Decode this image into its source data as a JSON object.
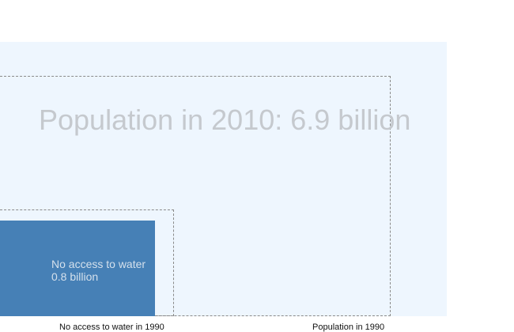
{
  "chart_data": {
    "type": "area",
    "series": [
      {
        "name": "Population in 2010",
        "value_billion": 6.9,
        "label": "Population in 2010: 6.9 billion"
      },
      {
        "name": "Population in 1990",
        "label": "Population in 1990"
      },
      {
        "name": "No access to water in 1990",
        "label": "No access to water in 1990"
      },
      {
        "name": "No access to water in 2010",
        "value_billion": 0.8,
        "label_line1": "No access to water",
        "label_line2": "0.8 billion"
      }
    ],
    "colors": {
      "population_2010_fill": "#eef6fe",
      "no_access_2010_fill": "#4680b6",
      "outline": "#8a8a8a",
      "title_text": "#c5c9ce"
    }
  }
}
